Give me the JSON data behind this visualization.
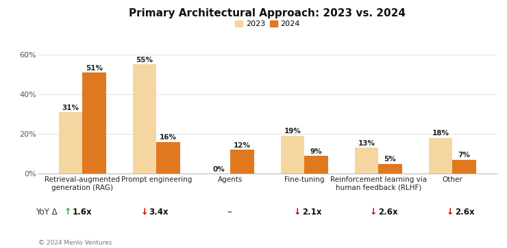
{
  "title": "Primary Architectural Approach: 2023 vs. 2024",
  "categories": [
    "Retrieval-augmented\ngeneration (RAG)",
    "Prompt engineering",
    "Agents",
    "Fine-tuning",
    "Reinforcement learning via\nhuman feedback (RLHF)",
    "Other"
  ],
  "values_2023": [
    31,
    55,
    0,
    19,
    13,
    18
  ],
  "values_2024": [
    51,
    16,
    12,
    9,
    5,
    7
  ],
  "color_2023": "#F5D5A0",
  "color_2024": "#E07820",
  "bar_width": 0.32,
  "ylim": [
    0,
    65
  ],
  "yticks": [
    0,
    20,
    40,
    60
  ],
  "ytick_labels": [
    "0%",
    "20%",
    "40%",
    "60%"
  ],
  "legend_labels": [
    "2023",
    "2024"
  ],
  "yoy_label": "YoY Δ",
  "yoy_values": [
    "↑ 1.6x",
    "↓ 3.4x",
    "–",
    "↓ 2.1x",
    "↓ 2.6x",
    "↓ 2.6x"
  ],
  "yoy_arrow_colors": [
    "#2eaa2e",
    "#cc0000",
    "#555555",
    "#cc0000",
    "#cc0000",
    "#cc0000"
  ],
  "yoy_text_colors": [
    "#111111",
    "#111111",
    "#555555",
    "#111111",
    "#111111",
    "#111111"
  ],
  "copyright": "© 2024 Menlo Ventures",
  "background_color": "#ffffff",
  "title_fontsize": 11,
  "label_fontsize": 7.5,
  "value_fontsize": 7.5,
  "tick_fontsize": 8,
  "yoy_fontsize": 8.5,
  "legend_fontsize": 8
}
